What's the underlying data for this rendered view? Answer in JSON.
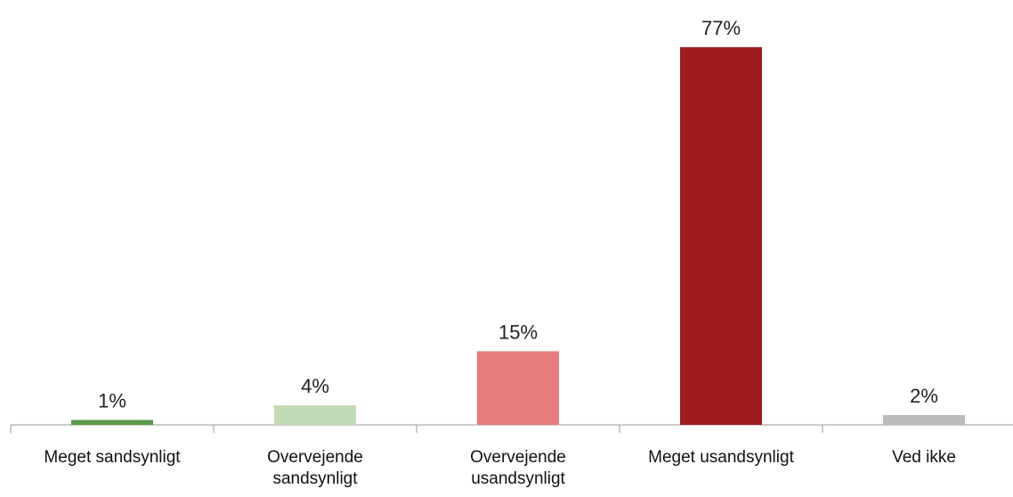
{
  "chart_data": {
    "type": "bar",
    "categories": [
      "Meget sandsynligt",
      "Overvejende sandsynligt",
      "Overvejende usandsynligt",
      "Meget usandsynligt",
      "Ved ikke"
    ],
    "values": [
      1,
      4,
      15,
      77,
      2
    ],
    "value_labels": [
      "1%",
      "4%",
      "15%",
      "77%",
      "2%"
    ],
    "colors": [
      "#5b9a4b",
      "#c2dbb7",
      "#e67c7c",
      "#9e1b1e",
      "#bcbcbc"
    ]
  }
}
